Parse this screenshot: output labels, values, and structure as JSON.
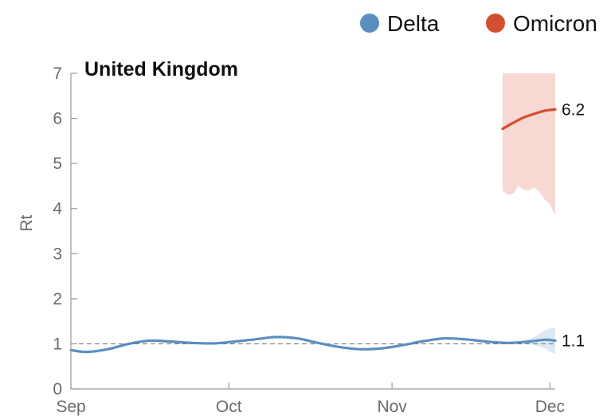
{
  "chart_data": {
    "type": "line",
    "title": "United Kingdom",
    "xlabel": "",
    "ylabel": "Rt",
    "ylim": [
      0,
      7
    ],
    "yticks": [
      0,
      1,
      2,
      3,
      4,
      5,
      6,
      7
    ],
    "xlim": [
      "2021-09-01",
      "2021-12-02"
    ],
    "xticks": [
      {
        "label": "Sep",
        "date": "2021-09-01"
      },
      {
        "label": "Oct",
        "date": "2021-10-01"
      },
      {
        "label": "Nov",
        "date": "2021-11-01"
      },
      {
        "label": "Dec",
        "date": "2021-12-01"
      }
    ],
    "reference_line": {
      "y": 1,
      "style": "dashed"
    },
    "legend": {
      "position": "top-right",
      "entries": [
        "Delta",
        "Omicron"
      ]
    },
    "grid": false,
    "series": [
      {
        "name": "Delta",
        "color": "#5b8fc0",
        "band_color": "#dce8f3",
        "end_label": "1.1",
        "points": [
          {
            "x": "2021-09-01",
            "y": 0.86
          },
          {
            "x": "2021-09-04",
            "y": 0.82
          },
          {
            "x": "2021-09-08",
            "y": 0.88
          },
          {
            "x": "2021-09-12",
            "y": 1.0
          },
          {
            "x": "2021-09-16",
            "y": 1.07
          },
          {
            "x": "2021-09-20",
            "y": 1.05
          },
          {
            "x": "2021-09-24",
            "y": 1.02
          },
          {
            "x": "2021-09-28",
            "y": 1.01
          },
          {
            "x": "2021-10-02",
            "y": 1.05
          },
          {
            "x": "2021-10-06",
            "y": 1.1
          },
          {
            "x": "2021-10-10",
            "y": 1.15
          },
          {
            "x": "2021-10-14",
            "y": 1.12
          },
          {
            "x": "2021-10-18",
            "y": 1.02
          },
          {
            "x": "2021-10-22",
            "y": 0.93
          },
          {
            "x": "2021-10-26",
            "y": 0.88
          },
          {
            "x": "2021-10-30",
            "y": 0.9
          },
          {
            "x": "2021-11-03",
            "y": 0.97
          },
          {
            "x": "2021-11-07",
            "y": 1.06
          },
          {
            "x": "2021-11-11",
            "y": 1.12
          },
          {
            "x": "2021-11-15",
            "y": 1.1
          },
          {
            "x": "2021-11-19",
            "y": 1.05
          },
          {
            "x": "2021-11-23",
            "y": 1.02
          },
          {
            "x": "2021-11-27",
            "y": 1.05
          },
          {
            "x": "2021-11-30",
            "y": 1.09
          },
          {
            "x": "2021-12-02",
            "y": 1.07
          }
        ],
        "band": [
          {
            "x": "2021-11-25",
            "lo": 1.02,
            "hi": 1.04
          },
          {
            "x": "2021-11-28",
            "lo": 0.98,
            "hi": 1.15
          },
          {
            "x": "2021-11-30",
            "lo": 0.9,
            "hi": 1.3
          },
          {
            "x": "2021-12-02",
            "lo": 0.77,
            "hi": 1.37
          }
        ]
      },
      {
        "name": "Omicron",
        "color": "#d24f32",
        "band_color": "#f8d8d3",
        "end_label": "6.2",
        "points": [
          {
            "x": "2021-11-22",
            "y": 5.77
          },
          {
            "x": "2021-11-24",
            "y": 5.9
          },
          {
            "x": "2021-11-26",
            "y": 6.02
          },
          {
            "x": "2021-11-28",
            "y": 6.1
          },
          {
            "x": "2021-11-30",
            "y": 6.17
          },
          {
            "x": "2021-12-02",
            "y": 6.2
          }
        ],
        "band": [
          {
            "x": "2021-11-22",
            "lo": 4.4,
            "hi": 7.0
          },
          {
            "x": "2021-11-23",
            "lo": 4.3,
            "hi": 7.0
          },
          {
            "x": "2021-11-24",
            "lo": 4.33,
            "hi": 7.0
          },
          {
            "x": "2021-11-25",
            "lo": 4.5,
            "hi": 7.0
          },
          {
            "x": "2021-11-26",
            "lo": 4.42,
            "hi": 7.0
          },
          {
            "x": "2021-11-27",
            "lo": 4.4,
            "hi": 7.0
          },
          {
            "x": "2021-11-28",
            "lo": 4.47,
            "hi": 7.0
          },
          {
            "x": "2021-11-29",
            "lo": 4.37,
            "hi": 7.0
          },
          {
            "x": "2021-11-30",
            "lo": 4.2,
            "hi": 7.0
          },
          {
            "x": "2021-12-01",
            "lo": 4.1,
            "hi": 7.0
          },
          {
            "x": "2021-12-02",
            "lo": 3.85,
            "hi": 7.0
          }
        ]
      }
    ]
  }
}
